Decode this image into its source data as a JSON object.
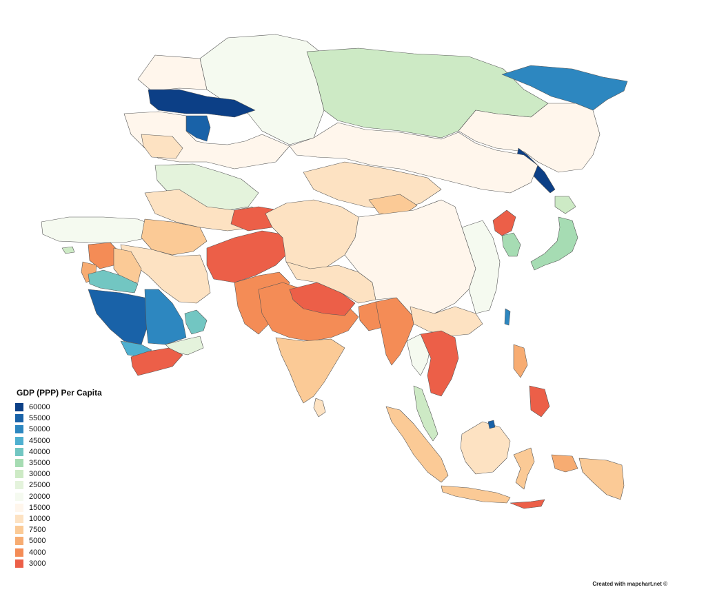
{
  "legend": {
    "title": "GDP (PPP) Per Capita",
    "items": [
      {
        "label": "60000",
        "color": "#0c3f86"
      },
      {
        "label": "55000",
        "color": "#1962a8"
      },
      {
        "label": "50000",
        "color": "#2d87c0"
      },
      {
        "label": "45000",
        "color": "#4fb0d0"
      },
      {
        "label": "40000",
        "color": "#72c6c2"
      },
      {
        "label": "35000",
        "color": "#a6dcb3"
      },
      {
        "label": "30000",
        "color": "#cdeac5"
      },
      {
        "label": "25000",
        "color": "#e4f3dc"
      },
      {
        "label": "20000",
        "color": "#f5faf0"
      },
      {
        "label": "15000",
        "color": "#fff6ec"
      },
      {
        "label": "10000",
        "color": "#fde2c2"
      },
      {
        "label": "7500",
        "color": "#fbca96"
      },
      {
        "label": "5000",
        "color": "#f7ac72"
      },
      {
        "label": "4000",
        "color": "#f48c56"
      },
      {
        "label": "3000",
        "color": "#ec5f48"
      }
    ]
  },
  "credit": "Created with mapchart.net ©"
}
